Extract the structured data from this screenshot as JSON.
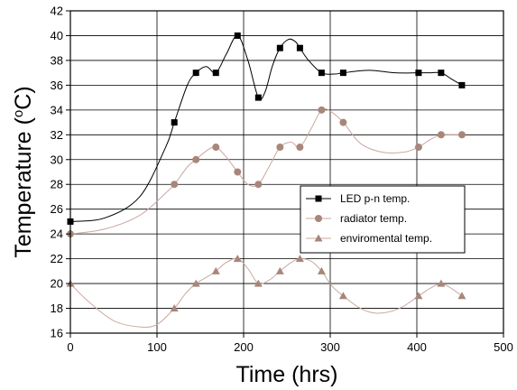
{
  "chart_data": {
    "type": "line",
    "title": "",
    "xlabel": "Time (hrs)",
    "ylabel_prefix": "Temperature (",
    "ylabel_sup": "o",
    "ylabel_suffix": "C)",
    "xlim": [
      0,
      500
    ],
    "ylim": [
      16,
      42
    ],
    "xticks": [
      0,
      100,
      200,
      300,
      400,
      500
    ],
    "yticks": [
      16,
      18,
      20,
      22,
      24,
      26,
      28,
      30,
      32,
      34,
      36,
      38,
      40,
      42
    ],
    "grid": true,
    "legend_position": "right",
    "series": [
      {
        "name": "LED p-n temp.",
        "marker": "square",
        "marker_color": "#000000",
        "line_color": "#000000",
        "points": [
          [
            0,
            25
          ],
          [
            120,
            33
          ],
          [
            145,
            37
          ],
          [
            168,
            37
          ],
          [
            193,
            40
          ],
          [
            217,
            35
          ],
          [
            242,
            39
          ],
          [
            265,
            39
          ],
          [
            290,
            37
          ],
          [
            315,
            37
          ],
          [
            402,
            37
          ],
          [
            428,
            37
          ],
          [
            452,
            36
          ]
        ],
        "curve": [
          [
            0,
            25
          ],
          [
            40,
            25.3
          ],
          [
            80,
            27
          ],
          [
            110,
            31
          ],
          [
            120,
            33
          ],
          [
            135,
            36
          ],
          [
            145,
            37
          ],
          [
            157,
            37.5
          ],
          [
            168,
            37
          ],
          [
            180,
            38.5
          ],
          [
            193,
            40
          ],
          [
            205,
            38
          ],
          [
            217,
            35
          ],
          [
            225,
            35.5
          ],
          [
            233,
            37.5
          ],
          [
            242,
            39
          ],
          [
            252,
            39.7
          ],
          [
            260,
            39.5
          ],
          [
            265,
            39
          ],
          [
            275,
            38
          ],
          [
            290,
            37
          ],
          [
            305,
            36.9
          ],
          [
            315,
            37
          ],
          [
            345,
            37.2
          ],
          [
            375,
            37
          ],
          [
            402,
            37
          ],
          [
            415,
            37
          ],
          [
            428,
            37
          ],
          [
            440,
            36.5
          ],
          [
            452,
            36
          ]
        ]
      },
      {
        "name": "radiator temp.",
        "marker": "circle",
        "marker_color": "#a8867a",
        "line_color": "#c9a8a0",
        "points": [
          [
            0,
            24
          ],
          [
            120,
            28
          ],
          [
            145,
            30
          ],
          [
            168,
            31
          ],
          [
            193,
            29
          ],
          [
            217,
            28
          ],
          [
            242,
            31
          ],
          [
            265,
            31
          ],
          [
            290,
            34
          ],
          [
            315,
            33
          ],
          [
            402,
            31
          ],
          [
            428,
            32
          ],
          [
            452,
            32
          ]
        ],
        "curve": [
          [
            0,
            24
          ],
          [
            40,
            24.4
          ],
          [
            80,
            25.5
          ],
          [
            110,
            27.3
          ],
          [
            120,
            28
          ],
          [
            135,
            29.4
          ],
          [
            145,
            30
          ],
          [
            157,
            30.7
          ],
          [
            168,
            31
          ],
          [
            180,
            30.2
          ],
          [
            193,
            29
          ],
          [
            205,
            28
          ],
          [
            217,
            28
          ],
          [
            230,
            29.5
          ],
          [
            242,
            31
          ],
          [
            255,
            31.4
          ],
          [
            265,
            31
          ],
          [
            278,
            32.5
          ],
          [
            290,
            34
          ],
          [
            300,
            33.9
          ],
          [
            315,
            33
          ],
          [
            335,
            31.3
          ],
          [
            360,
            30.6
          ],
          [
            385,
            30.6
          ],
          [
            402,
            31
          ],
          [
            415,
            31.6
          ],
          [
            428,
            32
          ],
          [
            440,
            32
          ],
          [
            452,
            32
          ]
        ]
      },
      {
        "name": "enviromental temp.",
        "marker": "triangle",
        "marker_color": "#a8867a",
        "line_color": "#c9a8a0",
        "points": [
          [
            0,
            20
          ],
          [
            120,
            18
          ],
          [
            145,
            20
          ],
          [
            168,
            21
          ],
          [
            193,
            22
          ],
          [
            217,
            20
          ],
          [
            242,
            21
          ],
          [
            265,
            22
          ],
          [
            290,
            21
          ],
          [
            315,
            19
          ],
          [
            402,
            19
          ],
          [
            428,
            20
          ],
          [
            452,
            19
          ]
        ],
        "curve": [
          [
            0,
            20
          ],
          [
            20,
            18.6
          ],
          [
            50,
            17
          ],
          [
            80,
            16.5
          ],
          [
            100,
            16.7
          ],
          [
            120,
            18
          ],
          [
            133,
            19.2
          ],
          [
            145,
            20
          ],
          [
            157,
            20.5
          ],
          [
            168,
            21
          ],
          [
            180,
            21.7
          ],
          [
            193,
            22
          ],
          [
            205,
            21.2
          ],
          [
            217,
            20
          ],
          [
            230,
            20.3
          ],
          [
            242,
            21
          ],
          [
            255,
            21.7
          ],
          [
            265,
            22
          ],
          [
            278,
            21.8
          ],
          [
            290,
            21
          ],
          [
            302,
            19.8
          ],
          [
            315,
            19
          ],
          [
            335,
            18
          ],
          [
            355,
            17.6
          ],
          [
            380,
            18
          ],
          [
            402,
            19
          ],
          [
            415,
            19.6
          ],
          [
            428,
            20
          ],
          [
            440,
            19.6
          ],
          [
            452,
            19
          ]
        ]
      }
    ]
  }
}
